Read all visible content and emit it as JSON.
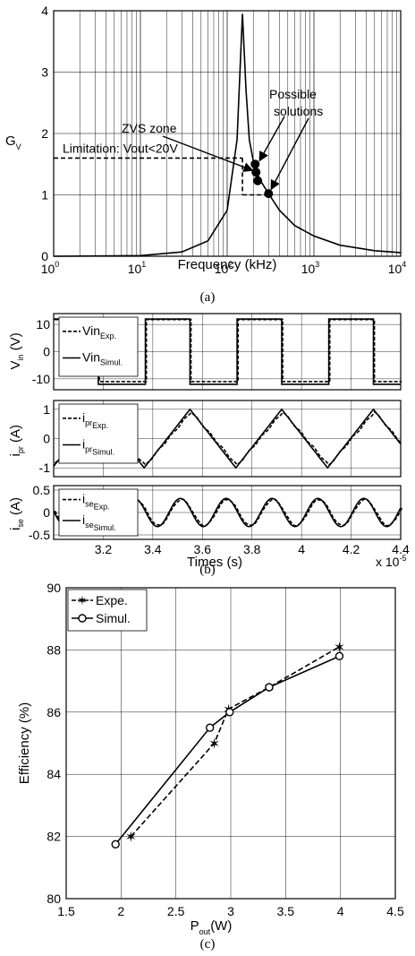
{
  "figure": {
    "captions": [
      "(a)",
      "(b)",
      "(c)"
    ]
  },
  "chart_data": [
    {
      "type": "line",
      "panel": "a",
      "xlabel": "Frequency (kHz)",
      "ylabel": "G",
      "ylabel_sub": "V",
      "xscale": "log",
      "xlim": [
        1,
        10000
      ],
      "ylim": [
        0,
        4
      ],
      "x_ticks": [
        "10",
        "10",
        "10",
        "10",
        "10"
      ],
      "x_tick_exps": [
        "0",
        "1",
        "2",
        "3",
        "4"
      ],
      "y_ticks": [
        "0",
        "1",
        "2",
        "3",
        "4"
      ],
      "grid": true,
      "series": [
        {
          "x": [
            1,
            10,
            30,
            60,
            100,
            130,
            150,
            165,
            180,
            200,
            220,
            250,
            300,
            400,
            600,
            1000,
            2000,
            5000,
            10000
          ],
          "y": [
            0.0,
            0.01,
            0.07,
            0.25,
            0.75,
            1.9,
            3.95,
            2.7,
            1.9,
            1.55,
            1.35,
            1.2,
            1.02,
            0.75,
            0.5,
            0.33,
            0.18,
            0.09,
            0.06
          ]
        }
      ],
      "points": {
        "x": [
          210,
          215,
          225,
          300
        ],
        "y": [
          1.5,
          1.37,
          1.23,
          1.02
        ]
      },
      "zvs_zone": {
        "x0": 150,
        "x1": 300,
        "y": 1.0
      },
      "limitation": {
        "y": 1.6
      },
      "annotations": {
        "limitation": "Limitation: Vout<20V",
        "zvs": "ZVS zone",
        "solutions_line1": "Possible",
        "solutions_line2": "solutions"
      }
    },
    {
      "type": "line",
      "panel": "b",
      "xlabel": "Times (s)",
      "x_exponent_label": "x 10",
      "x_exponent": "-5",
      "xlim": [
        3.0,
        4.4
      ],
      "x_ticks": [
        "3.2",
        "3.4",
        "3.6",
        "3.8",
        "4",
        "4.2",
        "4.4"
      ],
      "subplots": [
        {
          "ylabel": "V",
          "ylabel_sub": "in",
          "ylabel_unit": " (V)",
          "ylim": [
            -14,
            14
          ],
          "y_ticks": [
            "10",
            "0",
            "-10"
          ],
          "legend": [
            {
              "main": "Vin",
              "sub": "Exp."
            },
            {
              "main": "Vin",
              "sub": "Simul."
            }
          ],
          "rise_edges": [
            3.0,
            3.37,
            3.74,
            4.11
          ],
          "fall_edges": [
            3.18,
            3.55,
            3.92,
            4.29
          ],
          "level": 12
        },
        {
          "ylabel": "i",
          "ylabel_sub": "pr",
          "ylabel_unit": " (A)",
          "ylim": [
            -1.3,
            1.3
          ],
          "y_ticks": [
            "1",
            "0",
            "-1"
          ],
          "legend": [
            {
              "main": "i",
              "sub": "pr",
              "subsub": "Exp."
            },
            {
              "main": "i",
              "sub": "pr",
              "subsub": "Simul."
            }
          ],
          "amplitude": 1.0
        },
        {
          "ylabel": "i",
          "ylabel_sub": "se",
          "ylabel_unit": " (A)",
          "ylim": [
            -0.6,
            0.6
          ],
          "y_ticks": [
            "0.5",
            "0",
            "-0.5"
          ],
          "legend": [
            {
              "main": "i",
              "sub": "se",
              "subsub": "Exp."
            },
            {
              "main": "i",
              "sub": "se",
              "subsub": "Simul."
            }
          ],
          "amplitude": 0.35
        }
      ]
    },
    {
      "type": "line",
      "panel": "c",
      "xlabel": "P",
      "xlabel_sub": "out",
      "xlabel_unit": "(W)",
      "ylabel": "Efficiency (%)",
      "xlim": [
        1.5,
        4.5
      ],
      "ylim": [
        80,
        90
      ],
      "x_ticks": [
        "1.5",
        "2",
        "2.5",
        "3",
        "3.5",
        "4",
        "4.5"
      ],
      "y_ticks": [
        "80",
        "82",
        "84",
        "86",
        "88",
        "90"
      ],
      "legend_position": "top-left",
      "series": [
        {
          "name": "Expe.",
          "x": [
            2.09,
            2.85,
            2.98,
            3.35,
            3.99
          ],
          "y": [
            82.0,
            85.0,
            86.1,
            86.8,
            88.1
          ]
        },
        {
          "name": "Simul.",
          "x": [
            1.95,
            2.81,
            2.99,
            3.35,
            3.99
          ],
          "y": [
            81.75,
            85.5,
            86.0,
            86.8,
            87.8
          ]
        }
      ]
    }
  ]
}
